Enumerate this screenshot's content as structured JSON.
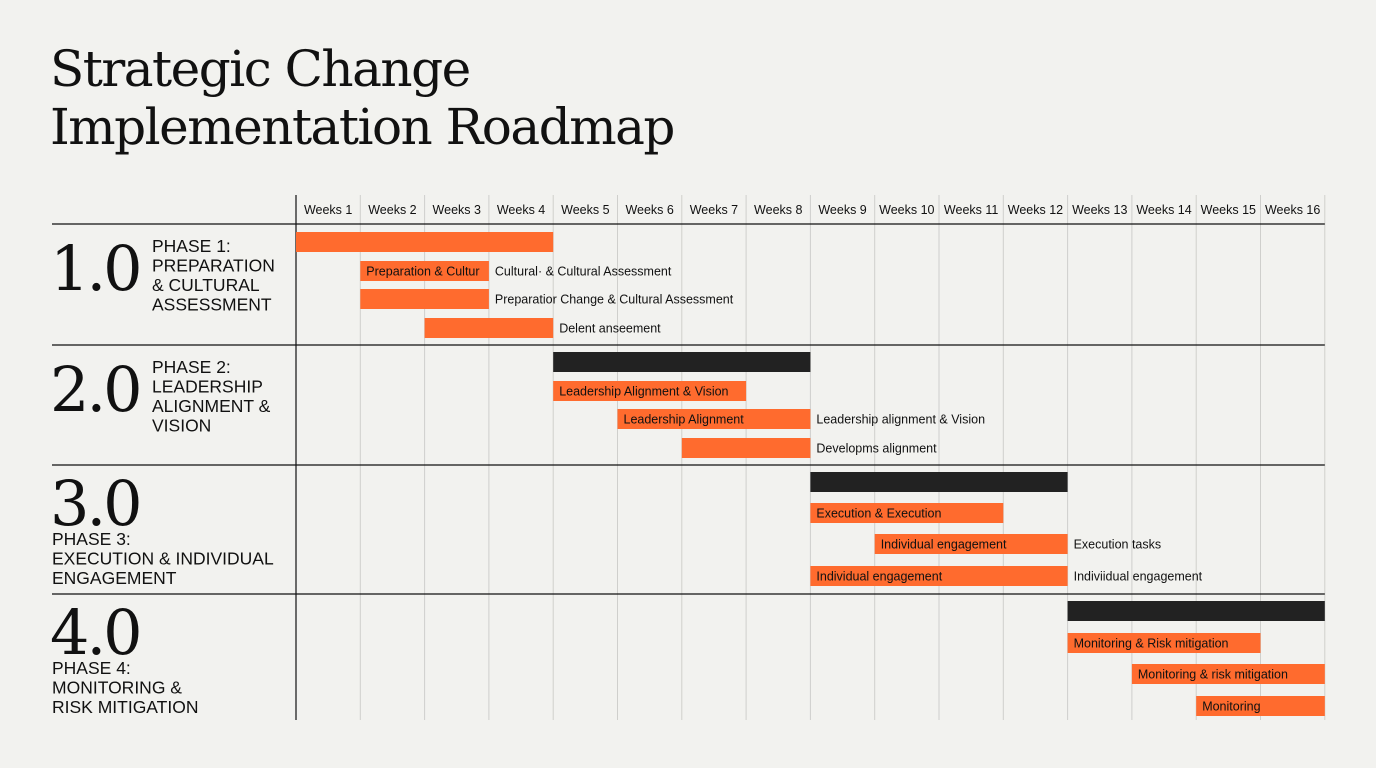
{
  "chart_data": {
    "type": "gantt",
    "title_lines": [
      "Strategic Change",
      "Implementation Roadmap"
    ],
    "weeks": [
      "Weeks 1",
      "Weeks 2",
      "Weeks 3",
      "Weeks 4",
      "Weeks 5",
      "Weeks 6",
      "Weeks 7",
      "Weeks 8",
      "Weeks 9",
      "Weeks 10",
      "Weeks 11",
      "Weeks 12",
      "Weeks 13",
      "Weeks 14",
      "Weeks 15",
      "Weeks 16"
    ],
    "colors": {
      "task": "#ff6b2e",
      "phase_bar_first": "#ff6b2e",
      "phase_bar": "#222222",
      "grid": "#cfcfcc",
      "rule": "#111111"
    },
    "phases": [
      {
        "number": "1.0",
        "name_lines": [
          "PHASE 1:",
          "PREPARATION",
          "& CULTURAL",
          "ASSESSMENT"
        ],
        "summary": {
          "start_week": 1,
          "end_week": 4
        },
        "tasks": [
          {
            "start_week": 2,
            "end_week": 3,
            "inside_label": "Preparation & Cultur",
            "outside_label": "Cultural· & Cultural Assessment"
          },
          {
            "start_week": 2,
            "end_week": 3,
            "inside_label": "",
            "outside_label": "Preparatior Change & Cultural Assessment"
          },
          {
            "start_week": 3,
            "end_week": 4,
            "inside_label": "",
            "outside_label": "Delent anseement"
          }
        ]
      },
      {
        "number": "2.0",
        "name_lines": [
          "PHASE 2:",
          "LEADERSHIP",
          "ALIGNMENT &",
          "VISION"
        ],
        "summary": {
          "start_week": 5,
          "end_week": 8
        },
        "tasks": [
          {
            "start_week": 5,
            "end_week": 7,
            "inside_label": "Leadership Alignment & Vision",
            "outside_label": ""
          },
          {
            "start_week": 6,
            "end_week": 8,
            "inside_label": "Leadership Alignment",
            "outside_label": "Leadership alignment & Vision"
          },
          {
            "start_week": 7,
            "end_week": 8,
            "inside_label": "",
            "outside_label": "Developms alignment"
          }
        ]
      },
      {
        "number": "3.0",
        "name_lines": [
          "PHASE 3:",
          "EXECUTION & INDIVIDUAL",
          "ENGAGEMENT"
        ],
        "summary": {
          "start_week": 9,
          "end_week": 12
        },
        "tasks": [
          {
            "start_week": 9,
            "end_week": 11,
            "inside_label": "Execution & Execution",
            "outside_label": ""
          },
          {
            "start_week": 10,
            "end_week": 12,
            "inside_label": "Individual engagement",
            "outside_label": "Execution tasks"
          },
          {
            "start_week": 9,
            "end_week": 12,
            "inside_label": "Individual engagement",
            "outside_label": "Indiviidual engagement"
          }
        ]
      },
      {
        "number": "4.0",
        "name_lines": [
          "PHASE 4:",
          "MONITORING &",
          "RISK MITIGATION"
        ],
        "summary": {
          "start_week": 13,
          "end_week": 16
        },
        "tasks": [
          {
            "start_week": 13,
            "end_week": 15,
            "inside_label": "Monitoring & Risk mitigation",
            "outside_label": ""
          },
          {
            "start_week": 14,
            "end_week": 16,
            "inside_label": "Monitoring & risk mitigation",
            "outside_label": ""
          },
          {
            "start_week": 15,
            "end_week": 16,
            "inside_label": "Monitoring",
            "outside_label": ""
          }
        ]
      }
    ]
  }
}
